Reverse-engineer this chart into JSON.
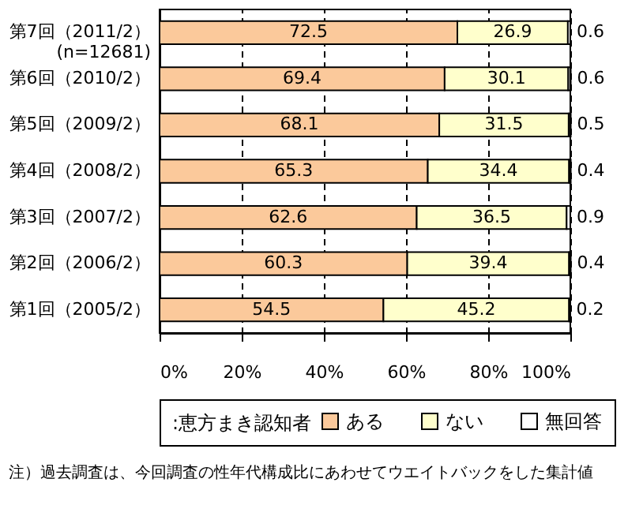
{
  "chart_data": {
    "type": "bar",
    "orientation": "horizontal",
    "stacked": true,
    "categories": [
      "第7回（2011/2）\n(n=12681)",
      "第6回（2010/2）",
      "第5回（2009/2）",
      "第4回（2008/2）",
      "第3回（2007/2）",
      "第2回（2006/2）",
      "第1回（2005/2）"
    ],
    "series": [
      {
        "name": "ある",
        "color": "#fbc99b",
        "values": [
          72.5,
          69.4,
          68.1,
          65.3,
          62.6,
          60.3,
          54.5
        ]
      },
      {
        "name": "ない",
        "color": "#ffffcc",
        "values": [
          26.9,
          30.1,
          31.5,
          34.4,
          36.5,
          39.4,
          45.2
        ]
      },
      {
        "name": "無回答",
        "color": "#ffffff",
        "values": [
          0.6,
          0.6,
          0.5,
          0.4,
          0.9,
          0.4,
          0.2
        ]
      }
    ],
    "xlim": [
      0,
      100
    ],
    "xticks": [
      {
        "value": 0,
        "label": "0%"
      },
      {
        "value": 20,
        "label": "20%"
      },
      {
        "value": 40,
        "label": "40%"
      },
      {
        "value": 60,
        "label": "60%"
      },
      {
        "value": 80,
        "label": "80%"
      },
      {
        "value": 100,
        "label": "100%"
      }
    ],
    "grid": "x",
    "data_labels": true,
    "legend": "bottom",
    "legend_title": ":恵方まき認知者",
    "annotations": [
      "注）過去調査は、今回調査の性年代構成比にあわせてウエイトバックをした集計値"
    ]
  }
}
